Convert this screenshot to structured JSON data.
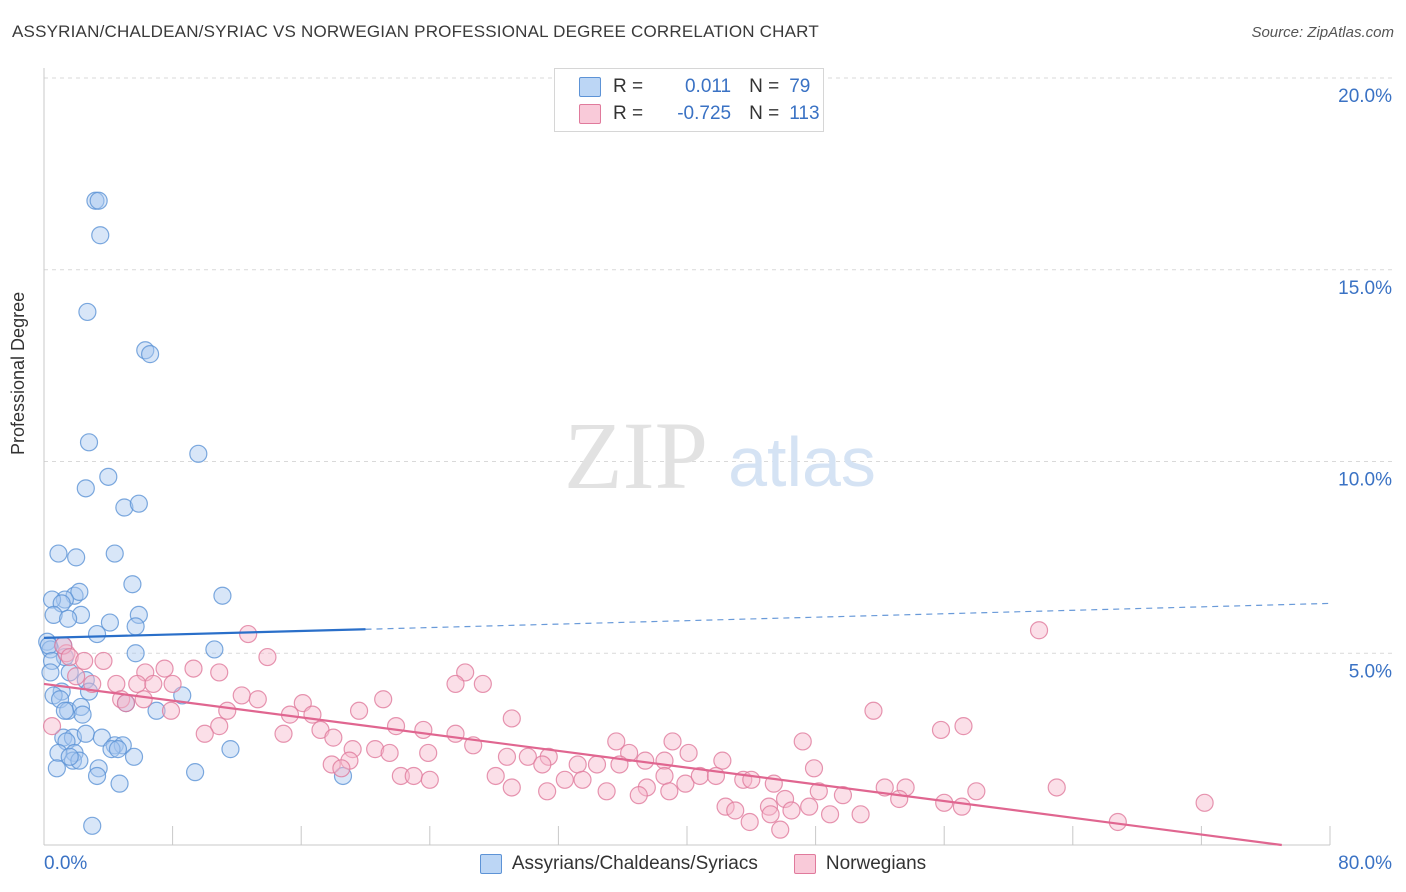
{
  "title": "ASSYRIAN/CHALDEAN/SYRIAC VS NORWEGIAN PROFESSIONAL DEGREE CORRELATION CHART",
  "source": "Source: ZipAtlas.com",
  "watermark": {
    "zip": "ZIP",
    "atlas": "atlas"
  },
  "legend_top": {
    "r_label": "R =",
    "n_label": "N =",
    "rows": [
      {
        "r": "0.011",
        "n": "79"
      },
      {
        "r": "-0.725",
        "n": "113"
      }
    ]
  },
  "colors": {
    "blue_fill": "#a8c8f0",
    "blue_stroke": "#5d93d6",
    "blue_line": "#2a6fc9",
    "pink_fill": "#f6b8cc",
    "pink_stroke": "#e07a9c",
    "pink_line": "#e06690",
    "axis_text": "#3a72c4",
    "grid": "#d9d9d9"
  },
  "chart_data": {
    "type": "scatter",
    "title": "ASSYRIAN/CHALDEAN/SYRIAC VS NORWEGIAN PROFESSIONAL DEGREE CORRELATION CHART",
    "xlabel": "",
    "ylabel": "Professional Degree",
    "xlim": [
      0,
      80
    ],
    "ylim": [
      0,
      20
    ],
    "x_tick_labels": [
      "0.0%",
      "80.0%"
    ],
    "y_ticks": [
      5,
      10,
      15,
      20
    ],
    "y_tick_labels": [
      "5.0%",
      "10.0%",
      "15.0%",
      "20.0%"
    ],
    "grid": true,
    "legend_position": "bottom",
    "series": [
      {
        "name": "Assyrians/Chaldeans/Syriacs",
        "color": "blue",
        "trend": {
          "x0": 0,
          "y0": 5.4,
          "x1": 80,
          "y1": 6.3,
          "solid_until": 20
        },
        "points": [
          [
            3.2,
            16.8
          ],
          [
            3.4,
            16.8
          ],
          [
            3.5,
            15.9
          ],
          [
            2.7,
            13.9
          ],
          [
            6.3,
            12.9
          ],
          [
            6.6,
            12.8
          ],
          [
            2.8,
            10.5
          ],
          [
            9.6,
            10.2
          ],
          [
            4.0,
            9.6
          ],
          [
            2.6,
            9.3
          ],
          [
            5.0,
            8.8
          ],
          [
            5.9,
            8.9
          ],
          [
            0.9,
            7.6
          ],
          [
            4.4,
            7.6
          ],
          [
            2.0,
            7.5
          ],
          [
            5.5,
            6.8
          ],
          [
            1.9,
            6.5
          ],
          [
            2.2,
            6.6
          ],
          [
            1.3,
            6.4
          ],
          [
            0.5,
            6.4
          ],
          [
            1.1,
            6.3
          ],
          [
            11.1,
            6.5
          ],
          [
            0.6,
            6.0
          ],
          [
            2.3,
            6.0
          ],
          [
            1.5,
            5.9
          ],
          [
            5.9,
            6.0
          ],
          [
            4.1,
            5.8
          ],
          [
            5.7,
            5.7
          ],
          [
            3.3,
            5.5
          ],
          [
            0.2,
            5.3
          ],
          [
            0.4,
            5.1
          ],
          [
            1.2,
            5.2
          ],
          [
            0.3,
            5.2
          ],
          [
            5.7,
            5.0
          ],
          [
            10.6,
            5.1
          ],
          [
            1.3,
            4.9
          ],
          [
            0.5,
            4.8
          ],
          [
            0.4,
            4.5
          ],
          [
            2.6,
            4.3
          ],
          [
            1.6,
            4.5
          ],
          [
            1.1,
            4.0
          ],
          [
            2.8,
            4.0
          ],
          [
            8.6,
            3.9
          ],
          [
            0.6,
            3.9
          ],
          [
            1.0,
            3.8
          ],
          [
            5.1,
            3.7
          ],
          [
            1.5,
            3.5
          ],
          [
            2.3,
            3.6
          ],
          [
            7.0,
            3.5
          ],
          [
            2.4,
            3.4
          ],
          [
            1.3,
            3.5
          ],
          [
            1.2,
            2.8
          ],
          [
            1.8,
            2.8
          ],
          [
            1.4,
            2.7
          ],
          [
            2.6,
            2.9
          ],
          [
            3.6,
            2.8
          ],
          [
            4.4,
            2.6
          ],
          [
            4.9,
            2.6
          ],
          [
            1.9,
            2.4
          ],
          [
            4.2,
            2.5
          ],
          [
            0.9,
            2.4
          ],
          [
            4.6,
            2.5
          ],
          [
            11.6,
            2.5
          ],
          [
            1.8,
            2.2
          ],
          [
            2.2,
            2.2
          ],
          [
            5.6,
            2.3
          ],
          [
            1.6,
            2.3
          ],
          [
            3.4,
            2.0
          ],
          [
            0.8,
            2.0
          ],
          [
            9.4,
            1.9
          ],
          [
            3.3,
            1.8
          ],
          [
            18.6,
            1.8
          ],
          [
            4.7,
            1.6
          ],
          [
            3.0,
            0.5
          ]
        ]
      },
      {
        "name": "Norwegians",
        "color": "pink",
        "trend": {
          "x0": 0,
          "y0": 4.2,
          "x1": 77,
          "y1": 0.0
        },
        "points": [
          [
            12.7,
            5.5
          ],
          [
            61.9,
            5.6
          ],
          [
            1.4,
            5.0
          ],
          [
            1.2,
            5.2
          ],
          [
            1.6,
            4.9
          ],
          [
            2.5,
            4.8
          ],
          [
            3.7,
            4.8
          ],
          [
            7.5,
            4.6
          ],
          [
            9.3,
            4.6
          ],
          [
            6.3,
            4.5
          ],
          [
            10.9,
            4.5
          ],
          [
            13.9,
            4.9
          ],
          [
            26.2,
            4.5
          ],
          [
            25.6,
            4.2
          ],
          [
            27.3,
            4.2
          ],
          [
            2.0,
            4.4
          ],
          [
            3.0,
            4.2
          ],
          [
            5.8,
            4.2
          ],
          [
            4.5,
            4.2
          ],
          [
            6.8,
            4.2
          ],
          [
            8.0,
            4.2
          ],
          [
            12.3,
            3.9
          ],
          [
            6.2,
            3.8
          ],
          [
            4.8,
            3.8
          ],
          [
            5.1,
            3.7
          ],
          [
            13.3,
            3.8
          ],
          [
            16.1,
            3.7
          ],
          [
            21.1,
            3.8
          ],
          [
            15.3,
            3.4
          ],
          [
            16.7,
            3.4
          ],
          [
            19.6,
            3.5
          ],
          [
            7.9,
            3.5
          ],
          [
            11.4,
            3.5
          ],
          [
            29.1,
            3.3
          ],
          [
            51.6,
            3.5
          ],
          [
            10.9,
            3.1
          ],
          [
            17.2,
            3.0
          ],
          [
            21.9,
            3.1
          ],
          [
            23.6,
            3.0
          ],
          [
            55.8,
            3.0
          ],
          [
            57.2,
            3.1
          ],
          [
            10.0,
            2.9
          ],
          [
            14.9,
            2.9
          ],
          [
            18.0,
            2.8
          ],
          [
            25.6,
            2.9
          ],
          [
            35.6,
            2.7
          ],
          [
            39.1,
            2.7
          ],
          [
            47.2,
            2.7
          ],
          [
            19.2,
            2.5
          ],
          [
            20.6,
            2.5
          ],
          [
            26.7,
            2.6
          ],
          [
            21.5,
            2.4
          ],
          [
            23.9,
            2.4
          ],
          [
            28.8,
            2.3
          ],
          [
            30.1,
            2.3
          ],
          [
            31.4,
            2.3
          ],
          [
            36.4,
            2.4
          ],
          [
            37.4,
            2.2
          ],
          [
            38.6,
            2.2
          ],
          [
            40.1,
            2.4
          ],
          [
            19.0,
            2.2
          ],
          [
            17.9,
            2.1
          ],
          [
            18.5,
            2.0
          ],
          [
            31.0,
            2.1
          ],
          [
            33.2,
            2.1
          ],
          [
            34.4,
            2.1
          ],
          [
            35.8,
            2.1
          ],
          [
            42.2,
            2.2
          ],
          [
            47.9,
            2.0
          ],
          [
            22.2,
            1.8
          ],
          [
            23.0,
            1.8
          ],
          [
            24.0,
            1.7
          ],
          [
            28.1,
            1.8
          ],
          [
            32.4,
            1.7
          ],
          [
            33.5,
            1.7
          ],
          [
            38.6,
            1.8
          ],
          [
            39.9,
            1.6
          ],
          [
            40.8,
            1.8
          ],
          [
            41.8,
            1.8
          ],
          [
            43.5,
            1.7
          ],
          [
            44.0,
            1.7
          ],
          [
            37.5,
            1.5
          ],
          [
            29.1,
            1.5
          ],
          [
            31.3,
            1.4
          ],
          [
            35.0,
            1.4
          ],
          [
            37.0,
            1.3
          ],
          [
            38.9,
            1.4
          ],
          [
            45.4,
            1.6
          ],
          [
            48.2,
            1.4
          ],
          [
            52.3,
            1.5
          ],
          [
            53.6,
            1.5
          ],
          [
            58.0,
            1.4
          ],
          [
            63.0,
            1.5
          ],
          [
            49.7,
            1.3
          ],
          [
            53.2,
            1.2
          ],
          [
            56.0,
            1.1
          ],
          [
            57.1,
            1.0
          ],
          [
            46.1,
            1.2
          ],
          [
            45.1,
            1.0
          ],
          [
            42.4,
            1.0
          ],
          [
            43.0,
            0.9
          ],
          [
            47.6,
            1.0
          ],
          [
            48.9,
            0.8
          ],
          [
            46.5,
            0.9
          ],
          [
            45.2,
            0.8
          ],
          [
            50.8,
            0.8
          ],
          [
            72.2,
            1.1
          ],
          [
            66.8,
            0.6
          ],
          [
            43.9,
            0.6
          ],
          [
            45.8,
            0.4
          ],
          [
            0.5,
            3.1
          ]
        ]
      }
    ]
  },
  "legend_bottom": [
    {
      "label": "Assyrians/Chaldeans/Syriacs",
      "color": "blue"
    },
    {
      "label": "Norwegians",
      "color": "pink"
    }
  ]
}
